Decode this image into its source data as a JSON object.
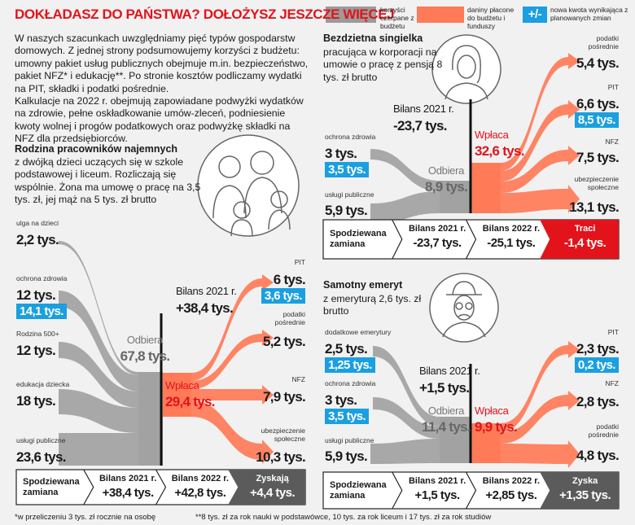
{
  "header": {
    "title": "DOKŁADASZ DO PAŃSTWA? DOŁOŻYSZ JESZCZE WIĘCEJ"
  },
  "legend": {
    "items": [
      {
        "label": "korzyści czerpane z budżetu"
      },
      {
        "label": "daniny płacone do budżetu i funduszy"
      },
      {
        "symbol": "+/-",
        "label": "nowa kwota wynikająca z planowanych zmian"
      }
    ]
  },
  "intro": [
    "W naszych szacunkach uwzględniamy pięć typów gospodarstw domowych. Z jednej strony podsumowujemy korzyści z budżetu: umowny pakiet usług publicznych obejmuje m.in. bezpieczeństwo, pakiet NFZ* i edukację**. Po stronie kosztów podliczamy wydatki na PIT, składki i podatki pośrednie.",
    "Kalkulacje na 2022 r. obejmują zapowiadane podwyżki wydatków na zdrowie, pełne oskładkowanie umów-zleceń, podniesienie kwoty wolnej i progów podatkowych oraz podwyżkę składki na NFZ dla przedsiębiorców."
  ],
  "panels": [
    {
      "title": "Rodzina pracowników najemnych",
      "description": "z dwójką dzieci uczących się w szkole podstawowej i liceum. Rozliczają się wspólnie. Żona ma umowę o pracę na 3,5 tys. zł, jej mąż na 5 tys. zł brutto",
      "benefits": [
        {
          "label": "ulga na dzieci",
          "value": "2,2 tys."
        },
        {
          "label": "ochrona zdrowia",
          "value": "12 tys.",
          "new_value": "14,1 tys."
        },
        {
          "label": "Rodzina 500+",
          "value": "12 tys."
        },
        {
          "label": "edukacja dziecka",
          "value": "18 tys."
        },
        {
          "label": "usługi publiczne",
          "value": "23,6 tys."
        }
      ],
      "flow": {
        "receives_label": "Odbiera",
        "receives": "67,8 tys.",
        "pays_label": "Wpłaca",
        "pays": "29,4 tys.",
        "balance_label": "Bilans 2021 r.",
        "balance": "+38,4 tys."
      },
      "payments": [
        {
          "label": "PIT",
          "value": "6 tys.",
          "new_value": "3,6 tys."
        },
        {
          "label": "podatki pośrednie",
          "value": "5,2 tys."
        },
        {
          "label": "NFZ",
          "value": "7,9 tys."
        },
        {
          "label": "ubezpieczenie społeczne",
          "value": "10,3 tys."
        }
      ],
      "summary": {
        "label": "Spodziewana zamiana",
        "cells": [
          {
            "label": "Bilans 2021 r.",
            "value": "+38,4 tys."
          },
          {
            "label": "Bilans 2022 r.",
            "value": "+42,8 tys."
          }
        ],
        "result": {
          "label": "Zyskają",
          "value": "+4,4 tys.",
          "color": "#5b5b5b"
        }
      }
    },
    {
      "title": "Bezdzietna singielka",
      "description": "pracująca w korporacji na umowie o pracę z pensją 8 tys. zł brutto",
      "benefits": [
        {
          "label": "ochrona zdrowia",
          "value": "3 tys.",
          "new_value": "3,5 tys."
        },
        {
          "label": "usługi publiczne",
          "value": "5,9 tys."
        }
      ],
      "flow": {
        "receives_label": "Odbiera",
        "receives": "8,9 tys.",
        "pays_label": "Wpłaca",
        "pays": "32,6 tys.",
        "balance_label": "Bilans 2021 r.",
        "balance": "-23,7 tys."
      },
      "payments": [
        {
          "label": "podatki pośrednie",
          "value": "5,4 tys."
        },
        {
          "label": "PIT",
          "value": "6,6 tys.",
          "new_value": "8,5 tys."
        },
        {
          "label": "NFZ",
          "value": "7,5 tys."
        },
        {
          "label": "ubezpieczenie społeczne",
          "value": "13,1 tys."
        }
      ],
      "summary": {
        "label": "Spodziewana zamiana",
        "cells": [
          {
            "label": "Bilans 2021 r.",
            "value": "-23,7 tys."
          },
          {
            "label": "Bilans 2022 r.",
            "value": "-25,1 tys."
          }
        ],
        "result": {
          "label": "Traci",
          "value": "-1,4 tys.",
          "color": "#e3131b"
        }
      }
    },
    {
      "title": "Samotny emeryt",
      "description": "z emeryturą 2,6 tys. zł brutto",
      "benefits": [
        {
          "label": "dodatkowe emerytury",
          "value": "2,5 tys.",
          "new_value": "1,25 tys."
        },
        {
          "label": "ochrona zdrowia",
          "value": "3 tys.",
          "new_value": "3,5 tys."
        },
        {
          "label": "usługi publiczne",
          "value": "5,9 tys."
        }
      ],
      "flow": {
        "receives_label": "Odbiera",
        "receives": "11,4 tys.",
        "pays_label": "Wpłaca",
        "pays": "9,9 tys.",
        "balance_label": "Bilans 2021 r.",
        "balance": "+1,5 tys."
      },
      "payments": [
        {
          "label": "PIT",
          "value": "2,3 tys.",
          "new_value": "0,2 tys."
        },
        {
          "label": "NFZ",
          "value": "2,8 tys."
        },
        {
          "label": "podatki pośrednie",
          "value": "4,8 tys."
        }
      ],
      "summary": {
        "label": "Spodziewana zamiana",
        "cells": [
          {
            "label": "Bilans 2021 r.",
            "value": "+1,5 tys."
          },
          {
            "label": "Bilans 2022 r.",
            "value": "+2,85 tys."
          }
        ],
        "result": {
          "label": "Zyska",
          "value": "+1,35 tys.",
          "color": "#5b5b5b"
        }
      }
    }
  ],
  "footnotes": [
    "*w przeliczeniu 3 tys. zł rocznie na osobę",
    "**8 tys. zł za rok nauki w podstawówce, 10 tys. za rok liceum i 17 tys. zł za rok studiów"
  ]
}
